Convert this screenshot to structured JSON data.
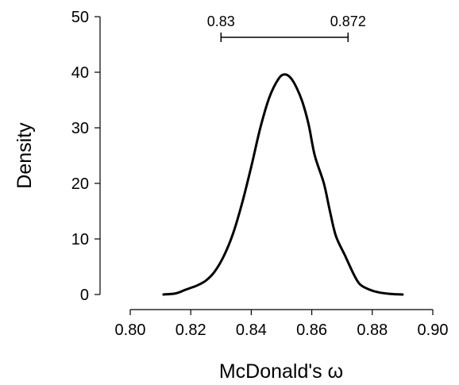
{
  "chart_data": {
    "type": "line",
    "title": "",
    "xlabel": "McDonald's ω",
    "ylabel": "Density",
    "xlim": [
      0.8,
      0.9
    ],
    "ylim": [
      0,
      50
    ],
    "x_ticks": [
      0.8,
      0.82,
      0.84,
      0.86,
      0.88,
      0.9
    ],
    "x_tick_labels": [
      "0.80",
      "0.82",
      "0.84",
      "0.86",
      "0.88",
      "0.90"
    ],
    "y_ticks": [
      0,
      10,
      20,
      30,
      40,
      50
    ],
    "y_tick_labels": [
      "0",
      "10",
      "20",
      "30",
      "40",
      "50"
    ],
    "grid": false,
    "series": [
      {
        "points": [
          [
            0.811,
            0.0
          ],
          [
            0.815,
            0.2
          ],
          [
            0.818,
            0.8
          ],
          [
            0.82,
            1.2
          ],
          [
            0.822,
            1.6
          ],
          [
            0.825,
            2.5
          ],
          [
            0.828,
            4.2
          ],
          [
            0.831,
            7.0
          ],
          [
            0.834,
            11.0
          ],
          [
            0.837,
            16.5
          ],
          [
            0.84,
            23.0
          ],
          [
            0.843,
            30.0
          ],
          [
            0.846,
            35.5
          ],
          [
            0.849,
            38.8
          ],
          [
            0.851,
            39.6
          ],
          [
            0.853,
            39.0
          ],
          [
            0.855,
            37.2
          ],
          [
            0.857,
            34.5
          ],
          [
            0.859,
            30.5
          ],
          [
            0.861,
            25.0
          ],
          [
            0.864,
            20.0
          ],
          [
            0.866,
            15.0
          ],
          [
            0.868,
            10.5
          ],
          [
            0.871,
            7.0
          ],
          [
            0.874,
            3.5
          ],
          [
            0.876,
            1.8
          ],
          [
            0.879,
            0.9
          ],
          [
            0.882,
            0.4
          ],
          [
            0.886,
            0.1
          ],
          [
            0.89,
            0.0
          ]
        ]
      }
    ],
    "interval": {
      "lower": 0.83,
      "upper": 0.872,
      "lower_label": "0.83",
      "upper_label": "0.872"
    }
  }
}
